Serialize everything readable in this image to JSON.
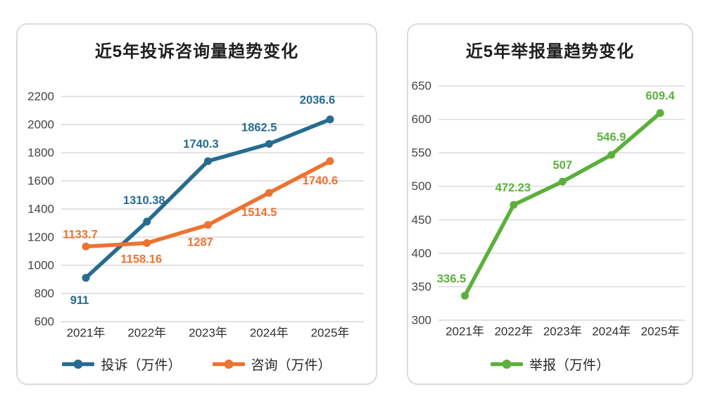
{
  "page": {
    "background": "#ffffff"
  },
  "styles": {
    "grid_color": "#d9d9d9",
    "y_tick_color": "#444444",
    "x_tick_color": "#303030",
    "title_color": "#1f1f1f",
    "legend_text_color": "#262626",
    "card_border_color": "#dcdcdc"
  },
  "chart_data": [
    {
      "type": "line",
      "title": "近5年投诉咨询量趋势变化",
      "categories": [
        "2021年",
        "2022年",
        "2023年",
        "2024年",
        "2025年"
      ],
      "series": [
        {
          "name": "投诉（万件）",
          "color": "#276C90",
          "values": [
            911,
            1310.38,
            1740.3,
            1862.5,
            2036.6
          ],
          "labels": [
            "911",
            "1310.38",
            "1740.3",
            "1862.5",
            "2036.6"
          ],
          "label_offsets": [
            [
              -9,
              32
            ],
            [
              -4,
              -30
            ],
            [
              -10,
              -24
            ],
            [
              -14,
              -23
            ],
            [
              -18,
              -27
            ]
          ]
        },
        {
          "name": "咨询（万件）",
          "color": "#EC7330",
          "values": [
            1133.7,
            1158.16,
            1287,
            1514.5,
            1740.6
          ],
          "labels": [
            "1133.7",
            "1158.16",
            "1287",
            "1514.5",
            "1740.6"
          ],
          "label_offsets": [
            [
              -8,
              -17
            ],
            [
              -8,
              23
            ],
            [
              -11,
              25
            ],
            [
              -14,
              28
            ],
            [
              -14,
              28
            ]
          ]
        }
      ],
      "y_axis": {
        "min": 600,
        "max": 2200,
        "step": 200
      },
      "grid": true,
      "legend_position": "bottom"
    },
    {
      "type": "line",
      "title": "近5年举报量趋势变化",
      "categories": [
        "2021年",
        "2022年",
        "2023年",
        "2024年",
        "2025年"
      ],
      "series": [
        {
          "name": "举报（万件）",
          "color": "#5BB03C",
          "values": [
            336.5,
            472.23,
            507,
            546.9,
            609.4
          ],
          "labels": [
            "336.5",
            "472.23",
            "507",
            "546.9",
            "609.4"
          ],
          "label_offsets": [
            [
              -19,
              -24
            ],
            [
              -1,
              -24
            ],
            [
              0,
              -23
            ],
            [
              0,
              -25
            ],
            [
              0,
              -24
            ]
          ]
        }
      ],
      "y_axis": {
        "min": 300,
        "max": 650,
        "step": 50
      },
      "grid": true,
      "legend_position": "bottom"
    }
  ]
}
